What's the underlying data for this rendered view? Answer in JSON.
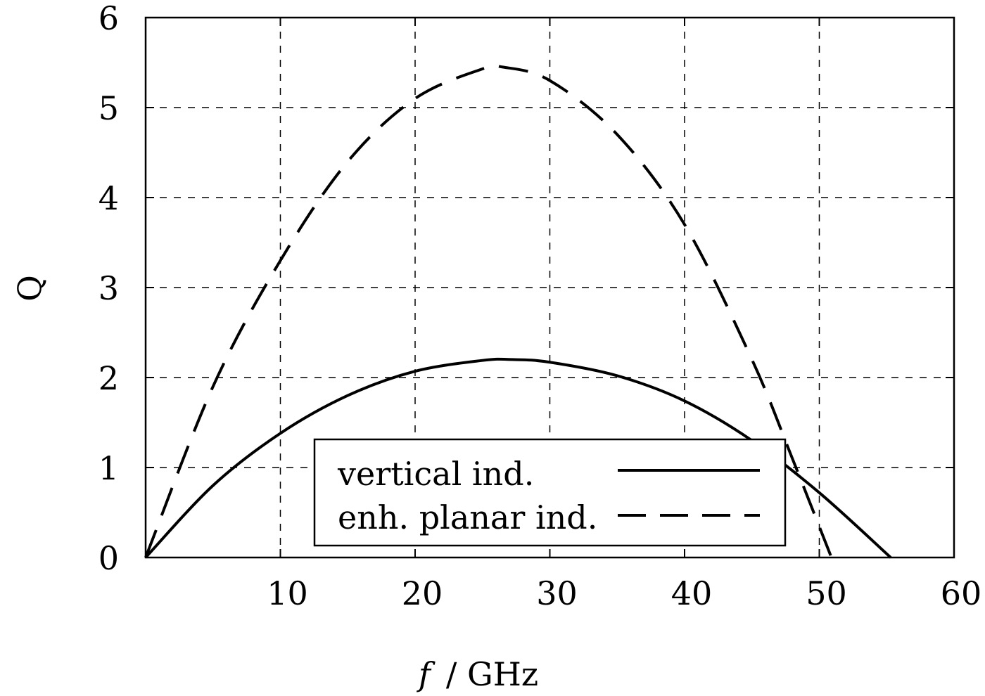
{
  "chart_data": {
    "type": "line",
    "title": "",
    "xlabel": "f / GHz",
    "xlabel_italic_part": "f",
    "xlabel_rest": "/ GHz",
    "ylabel": "Q",
    "xlim": [
      0,
      60
    ],
    "ylim": [
      0,
      6
    ],
    "xticks": [
      10,
      20,
      30,
      40,
      50,
      60
    ],
    "yticks": [
      0,
      1,
      2,
      3,
      4,
      5,
      6
    ],
    "grid": true,
    "legend_position": "lower center (inside)",
    "series": [
      {
        "name": "vertical ind.",
        "style": "solid",
        "x": [
          0,
          5,
          10,
          15,
          20,
          25,
          27.2,
          30,
          35,
          40,
          45,
          50,
          55.3
        ],
        "y": [
          0,
          0.8,
          1.38,
          1.8,
          2.07,
          2.19,
          2.2,
          2.17,
          2.02,
          1.74,
          1.3,
          0.72,
          0
        ]
      },
      {
        "name": "enh. planar ind.",
        "style": "dashed",
        "x": [
          0,
          5,
          10,
          15,
          20,
          25,
          26.5,
          30,
          35,
          40,
          45,
          48,
          50.9
        ],
        "y": [
          0,
          1.9,
          3.3,
          4.4,
          5.1,
          5.43,
          5.45,
          5.3,
          4.7,
          3.7,
          2.2,
          1.1,
          0
        ]
      }
    ]
  }
}
